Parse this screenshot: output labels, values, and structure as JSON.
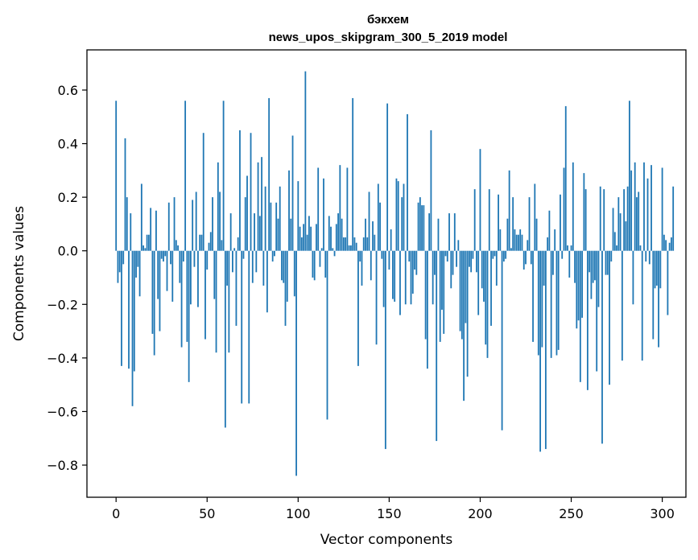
{
  "chart_data": {
    "type": "bar",
    "title_line1": "бэкхем",
    "title_line2": "news_upos_skipgram_300_5_2019 model",
    "xlabel": "Vector components",
    "ylabel": "Components values",
    "xlim": [
      -16,
      313
    ],
    "ylim": [
      -0.92,
      0.75
    ],
    "xticks": [
      0,
      50,
      100,
      150,
      200,
      250,
      300
    ],
    "xtick_labels": [
      "0",
      "50",
      "100",
      "150",
      "200",
      "250",
      "300"
    ],
    "yticks": [
      -0.8,
      -0.6,
      -0.4,
      -0.2,
      0.0,
      0.2,
      0.4,
      0.6
    ],
    "ytick_labels": [
      "−0.8",
      "−0.6",
      "−0.4",
      "−0.2",
      "0.0",
      "0.2",
      "0.4",
      "0.6"
    ],
    "bar_color": "#1f77b4",
    "grid": false,
    "values": [
      0.56,
      -0.12,
      -0.08,
      -0.43,
      -0.05,
      0.42,
      0.2,
      -0.44,
      0.14,
      -0.58,
      -0.45,
      -0.1,
      -0.06,
      -0.17,
      0.25,
      0.02,
      0.01,
      0.06,
      0.06,
      0.16,
      -0.31,
      -0.39,
      0.15,
      -0.18,
      -0.3,
      -0.03,
      -0.04,
      -0.02,
      -0.15,
      0.18,
      -0.05,
      -0.19,
      0.2,
      0.04,
      0.02,
      -0.12,
      -0.36,
      -0.04,
      0.56,
      -0.34,
      -0.49,
      -0.2,
      0.19,
      -0.06,
      0.22,
      -0.21,
      0.06,
      0.06,
      0.44,
      -0.33,
      -0.07,
      0.03,
      0.07,
      0.2,
      -0.18,
      -0.38,
      0.33,
      0.22,
      0.04,
      0.56,
      -0.66,
      -0.13,
      -0.38,
      0.14,
      -0.08,
      0.01,
      -0.28,
      0.05,
      0.45,
      -0.57,
      -0.03,
      0.2,
      0.28,
      -0.57,
      0.44,
      -0.12,
      0.14,
      -0.08,
      0.33,
      0.13,
      0.35,
      -0.13,
      0.24,
      -0.23,
      0.57,
      0.18,
      -0.04,
      -0.02,
      0.18,
      0.12,
      0.24,
      -0.11,
      -0.12,
      -0.28,
      -0.19,
      0.3,
      0.12,
      0.43,
      -0.17,
      -0.84,
      0.26,
      0.09,
      0.05,
      0.1,
      0.67,
      0.06,
      0.13,
      0.09,
      -0.1,
      -0.11,
      0.1,
      0.31,
      -0.06,
      0.01,
      0.27,
      -0.1,
      -0.63,
      0.13,
      0.09,
      0.01,
      -0.02,
      0.1,
      0.14,
      0.32,
      0.12,
      0.05,
      0.05,
      0.31,
      0.02,
      0.02,
      0.57,
      0.05,
      0.03,
      -0.43,
      -0.04,
      -0.13,
      0.05,
      0.12,
      0.05,
      0.22,
      -0.11,
      0.11,
      0.06,
      -0.35,
      0.25,
      0.18,
      -0.03,
      -0.21,
      -0.74,
      0.55,
      -0.07,
      0.08,
      -0.18,
      -0.19,
      0.27,
      0.26,
      -0.24,
      0.2,
      0.25,
      -0.2,
      0.51,
      -0.04,
      -0.2,
      -0.16,
      -0.07,
      -0.09,
      0.18,
      0.2,
      0.17,
      0.17,
      -0.33,
      -0.44,
      0.14,
      0.45,
      -0.2,
      -0.09,
      -0.71,
      0.12,
      -0.34,
      -0.22,
      -0.31,
      -0.02,
      -0.04,
      0.14,
      -0.14,
      -0.09,
      0.14,
      -0.06,
      0.04,
      -0.3,
      -0.33,
      -0.56,
      -0.27,
      -0.47,
      -0.06,
      -0.08,
      -0.03,
      0.23,
      -0.08,
      -0.24,
      0.38,
      -0.14,
      -0.19,
      -0.35,
      -0.4,
      0.23,
      -0.28,
      -0.03,
      -0.02,
      -0.13,
      0.21,
      0.08,
      -0.67,
      -0.04,
      -0.03,
      0.12,
      0.3,
      0.01,
      0.2,
      0.08,
      0.06,
      0.06,
      0.08,
      0.06,
      -0.07,
      -0.05,
      0.04,
      0.2,
      -0.05,
      -0.34,
      0.25,
      0.12,
      -0.39,
      -0.75,
      -0.36,
      -0.13,
      -0.74,
      0.05,
      0.15,
      -0.4,
      -0.09,
      0.08,
      -0.39,
      -0.37,
      0.21,
      -0.03,
      0.31,
      0.54,
      0.02,
      -0.1,
      0.02,
      0.33,
      -0.12,
      -0.29,
      -0.26,
      -0.49,
      -0.25,
      0.29,
      0.23,
      -0.52,
      -0.08,
      -0.18,
      -0.12,
      -0.11,
      -0.45,
      -0.21,
      0.24,
      -0.72,
      0.23,
      -0.09,
      -0.09,
      -0.5,
      -0.04,
      0.16,
      0.07,
      0.02,
      0.2,
      0.14,
      -0.41,
      0.23,
      0.11,
      0.24,
      0.56,
      0.3,
      -0.2,
      0.33,
      0.2,
      0.22,
      0.02,
      -0.41,
      0.33,
      -0.04,
      0.27,
      -0.05,
      0.32,
      -0.33,
      -0.14,
      -0.13,
      -0.36,
      -0.14,
      0.31,
      0.06,
      0.04,
      -0.24,
      0.03,
      0.05,
      0.24
    ]
  }
}
